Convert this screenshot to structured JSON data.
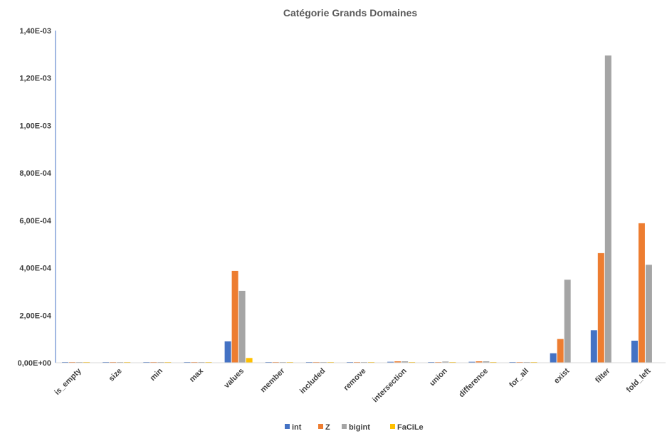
{
  "chart_data": {
    "type": "bar",
    "title": "Catégorie Grands Domaines",
    "xlabel": "",
    "ylabel": "",
    "ylim": [
      0,
      0.0014
    ],
    "y_ticks": [
      {
        "value": 0,
        "label": "0,00E+00"
      },
      {
        "value": 0.0002,
        "label": "2,00E-04"
      },
      {
        "value": 0.0004,
        "label": "4,00E-04"
      },
      {
        "value": 0.0006,
        "label": "6,00E-04"
      },
      {
        "value": 0.0008,
        "label": "8,00E-04"
      },
      {
        "value": 0.001,
        "label": "1,00E-03"
      },
      {
        "value": 0.0012,
        "label": "1,20E-03"
      },
      {
        "value": 0.0014,
        "label": "1,40E-03"
      }
    ],
    "grid": false,
    "legend_position": "bottom",
    "categories": [
      "is_empty",
      "size",
      "min",
      "max",
      "values",
      "member",
      "included",
      "remove",
      "intersection",
      "union",
      "difference",
      "for_all",
      "exist",
      "filter",
      "fold_left"
    ],
    "series": [
      {
        "name": "int",
        "color": "#4472C4",
        "values": [
          3e-06,
          3e-06,
          3e-06,
          3e-06,
          9e-05,
          3e-06,
          3e-06,
          3e-06,
          4e-06,
          3e-06,
          4e-06,
          3e-06,
          4e-05,
          0.000137,
          9.3e-05
        ]
      },
      {
        "name": "Z",
        "color": "#ED7D31",
        "values": [
          3e-06,
          3e-06,
          3e-06,
          3e-06,
          0.000387,
          3e-06,
          3e-06,
          3e-06,
          6e-06,
          3e-06,
          6e-06,
          3e-06,
          0.0001,
          0.000462,
          0.000588
        ]
      },
      {
        "name": "bigint",
        "color": "#A5A5A5",
        "values": [
          3e-06,
          3e-06,
          3e-06,
          3e-06,
          0.000303,
          3e-06,
          3e-06,
          3e-06,
          6e-06,
          5e-06,
          6e-06,
          3e-06,
          0.00035,
          0.001295,
          0.000413
        ]
      },
      {
        "name": "FaCiLe",
        "color": "#FFC000",
        "values": [
          2e-06,
          2e-06,
          2e-06,
          2e-06,
          2e-05,
          2e-06,
          2e-06,
          2e-06,
          2e-06,
          2e-06,
          2e-06,
          2e-06,
          0,
          0,
          0
        ]
      }
    ]
  }
}
